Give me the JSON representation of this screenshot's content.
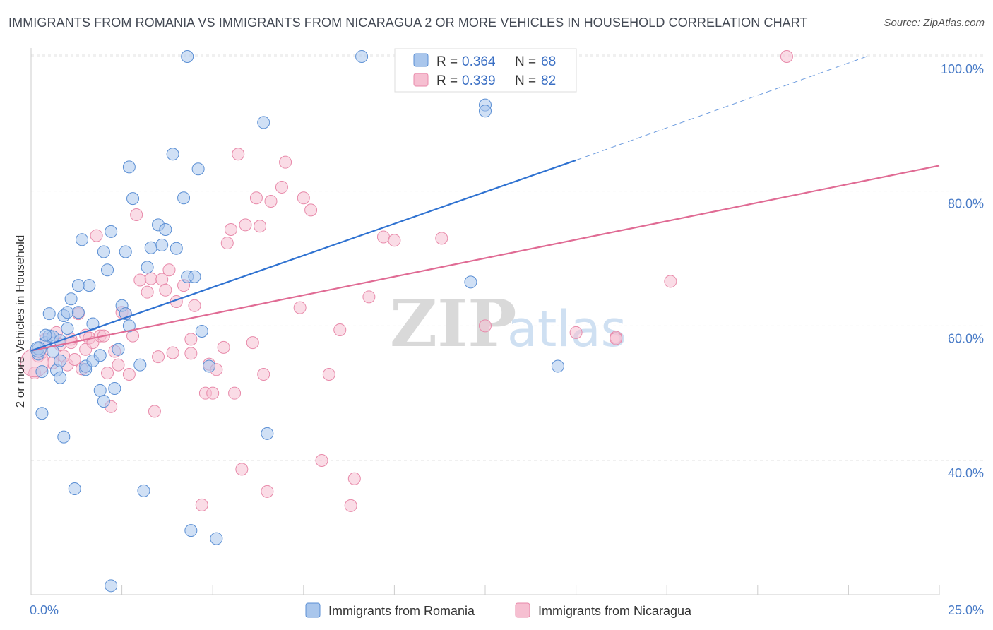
{
  "title": "IMMIGRANTS FROM ROMANIA VS IMMIGRANTS FROM NICARAGUA 2 OR MORE VEHICLES IN HOUSEHOLD CORRELATION CHART",
  "source": "Source: ZipAtlas.com",
  "watermark": {
    "zip": "ZIP",
    "atlas": "atlas"
  },
  "colors": {
    "romania_fill": "#a9c6ec",
    "romania_stroke": "#5b8fd4",
    "romania_line": "#2f72d1",
    "nicaragua_fill": "#f6bfd1",
    "nicaragua_stroke": "#e88aaa",
    "nicaragua_line": "#e06b94",
    "axis_text": "#4a7cc7"
  },
  "legend": {
    "romania": {
      "r_label": "R = ",
      "r_value": "0.364",
      "n_label": "N = ",
      "n_value": "68"
    },
    "nicaragua": {
      "r_label": "R = ",
      "r_value": "0.339",
      "n_label": "N = ",
      "n_value": "82"
    }
  },
  "chart_data": {
    "type": "scatter",
    "title": "IMMIGRANTS FROM ROMANIA VS IMMIGRANTS FROM NICARAGUA 2 OR MORE VEHICLES IN HOUSEHOLD CORRELATION CHART",
    "xlabel": "",
    "ylabel": "2 or more Vehicles in Household",
    "xlim": [
      0,
      25
    ],
    "ylim": [
      20,
      102
    ],
    "x_tick_labels": [
      "0.0%",
      "25.0%"
    ],
    "y_ticks": [
      40,
      60,
      80,
      100
    ],
    "y_tick_labels": [
      "40.0%",
      "60.0%",
      "80.0%",
      "100.0%"
    ],
    "grid": true,
    "legend_position": "top-center",
    "series": [
      {
        "name": "Immigrants from Romania",
        "trend": {
          "x0": 0,
          "y0": 56.3,
          "x1": 15,
          "y1": 84.6,
          "dash_to_x": 23,
          "dash_to_y": 100
        },
        "points": [
          [
            0.2,
            55.8
          ],
          [
            0.3,
            53.2
          ],
          [
            0.3,
            47.0
          ],
          [
            0.4,
            57.5
          ],
          [
            0.5,
            58.5
          ],
          [
            0.5,
            61.8
          ],
          [
            0.6,
            56.2
          ],
          [
            0.6,
            58.4
          ],
          [
            0.7,
            53.4
          ],
          [
            0.8,
            54.8
          ],
          [
            0.8,
            52.3
          ],
          [
            0.8,
            57.8
          ],
          [
            0.9,
            61.5
          ],
          [
            0.9,
            43.5
          ],
          [
            1.0,
            62.0
          ],
          [
            1.0,
            59.6
          ],
          [
            1.1,
            64.0
          ],
          [
            1.2,
            35.8
          ],
          [
            1.3,
            62.0
          ],
          [
            1.3,
            66.0
          ],
          [
            1.4,
            72.8
          ],
          [
            1.5,
            53.5
          ],
          [
            1.5,
            54.0
          ],
          [
            1.6,
            66.0
          ],
          [
            1.7,
            60.3
          ],
          [
            1.7,
            54.8
          ],
          [
            1.9,
            55.6
          ],
          [
            1.9,
            50.4
          ],
          [
            2.0,
            71.0
          ],
          [
            2.0,
            48.8
          ],
          [
            2.1,
            68.3
          ],
          [
            2.2,
            21.4
          ],
          [
            2.2,
            74.0
          ],
          [
            2.3,
            50.7
          ],
          [
            2.4,
            56.5
          ],
          [
            2.5,
            63.0
          ],
          [
            2.6,
            71.0
          ],
          [
            2.6,
            61.8
          ],
          [
            2.7,
            83.6
          ],
          [
            2.7,
            60.0
          ],
          [
            2.8,
            78.9
          ],
          [
            3.0,
            54.2
          ],
          [
            3.1,
            35.5
          ],
          [
            3.2,
            68.7
          ],
          [
            3.3,
            71.6
          ],
          [
            3.5,
            75.0
          ],
          [
            3.6,
            72.0
          ],
          [
            3.7,
            74.3
          ],
          [
            3.9,
            85.5
          ],
          [
            4.0,
            71.5
          ],
          [
            4.2,
            79.0
          ],
          [
            4.3,
            67.3
          ],
          [
            4.3,
            100.0
          ],
          [
            4.4,
            29.6
          ],
          [
            4.5,
            67.3
          ],
          [
            4.6,
            83.3
          ],
          [
            4.7,
            59.2
          ],
          [
            4.9,
            54.0
          ],
          [
            5.1,
            28.4
          ],
          [
            6.4,
            90.2
          ],
          [
            6.5,
            44.0
          ],
          [
            9.1,
            100.0
          ],
          [
            12.1,
            66.5
          ],
          [
            12.5,
            92.8
          ],
          [
            12.5,
            91.9
          ],
          [
            14.5,
            54.0
          ],
          [
            0.2,
            56.6
          ],
          [
            0.4,
            58.6
          ]
        ]
      },
      {
        "name": "Immigrants from Nicaragua",
        "trend": {
          "x0": 0,
          "y0": 56.3,
          "x1": 25,
          "y1": 83.8
        },
        "points": [
          [
            0.1,
            53.0
          ],
          [
            0.2,
            55.5
          ],
          [
            0.3,
            56.0
          ],
          [
            0.4,
            58.0
          ],
          [
            0.6,
            54.5
          ],
          [
            0.7,
            59.0
          ],
          [
            0.8,
            57.2
          ],
          [
            0.9,
            55.5
          ],
          [
            1.0,
            54.2
          ],
          [
            1.1,
            58.0
          ],
          [
            1.1,
            57.5
          ],
          [
            1.2,
            55.0
          ],
          [
            1.3,
            61.8
          ],
          [
            1.4,
            53.6
          ],
          [
            1.5,
            58.6
          ],
          [
            1.5,
            56.5
          ],
          [
            1.6,
            58.2
          ],
          [
            1.7,
            57.5
          ],
          [
            1.8,
            73.4
          ],
          [
            1.9,
            58.5
          ],
          [
            2.0,
            58.5
          ],
          [
            2.1,
            53.0
          ],
          [
            2.2,
            48.0
          ],
          [
            2.3,
            56.2
          ],
          [
            2.4,
            54.2
          ],
          [
            2.5,
            62.0
          ],
          [
            2.6,
            61.8
          ],
          [
            2.7,
            52.8
          ],
          [
            2.8,
            58.5
          ],
          [
            2.9,
            76.5
          ],
          [
            3.0,
            66.8
          ],
          [
            3.2,
            65.0
          ],
          [
            3.3,
            67.0
          ],
          [
            3.4,
            47.3
          ],
          [
            3.5,
            55.4
          ],
          [
            3.6,
            66.9
          ],
          [
            3.7,
            65.3
          ],
          [
            3.8,
            68.3
          ],
          [
            3.9,
            56.0
          ],
          [
            4.0,
            63.6
          ],
          [
            4.2,
            66.0
          ],
          [
            4.4,
            58.0
          ],
          [
            4.4,
            55.9
          ],
          [
            4.5,
            63.0
          ],
          [
            4.7,
            33.4
          ],
          [
            4.8,
            50.0
          ],
          [
            4.9,
            54.3
          ],
          [
            5.0,
            50.0
          ],
          [
            5.1,
            53.5
          ],
          [
            5.3,
            56.8
          ],
          [
            5.4,
            72.3
          ],
          [
            5.5,
            74.3
          ],
          [
            5.6,
            50.0
          ],
          [
            5.7,
            85.5
          ],
          [
            5.8,
            38.7
          ],
          [
            5.9,
            75.0
          ],
          [
            6.1,
            57.5
          ],
          [
            6.2,
            79.0
          ],
          [
            6.3,
            74.8
          ],
          [
            6.4,
            52.8
          ],
          [
            6.5,
            35.4
          ],
          [
            6.6,
            78.5
          ],
          [
            6.9,
            80.6
          ],
          [
            7.0,
            84.3
          ],
          [
            7.4,
            62.7
          ],
          [
            7.5,
            79.0
          ],
          [
            7.7,
            77.2
          ],
          [
            8.0,
            40.0
          ],
          [
            8.2,
            52.8
          ],
          [
            8.5,
            59.4
          ],
          [
            8.8,
            33.3
          ],
          [
            8.9,
            37.3
          ],
          [
            9.3,
            64.3
          ],
          [
            9.7,
            73.2
          ],
          [
            10.0,
            72.7
          ],
          [
            11.3,
            73.0
          ],
          [
            12.5,
            60.0
          ],
          [
            15.0,
            59.0
          ],
          [
            16.1,
            58.3
          ],
          [
            16.1,
            58.1
          ],
          [
            17.6,
            66.6
          ],
          [
            20.8,
            100.0
          ]
        ]
      }
    ]
  },
  "bottom_legend": {
    "romania": "Immigrants from Romania",
    "nicaragua": "Immigrants from Nicaragua"
  }
}
